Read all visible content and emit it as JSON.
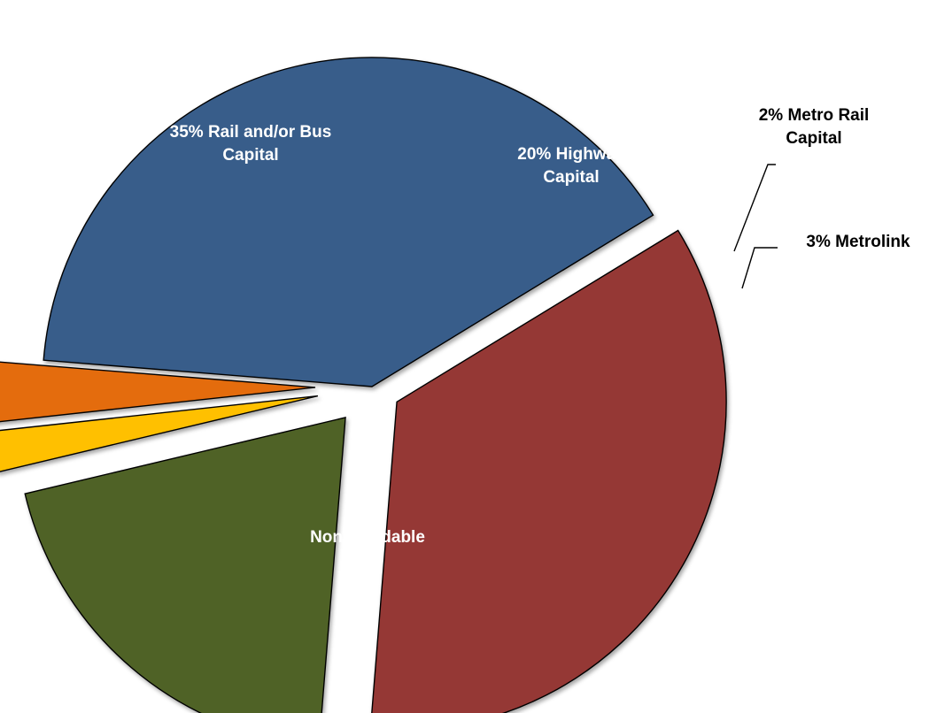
{
  "chart_data": {
    "type": "pie",
    "title": "",
    "exploded": true,
    "slices": [
      {
        "label": "Non-Bondable",
        "lines": [
          "Non-Bondable"
        ],
        "value": 40,
        "color": "#385D8A",
        "label_position": "inside"
      },
      {
        "label": "35% Rail and/or Bus Capital",
        "lines": [
          "35% Rail and/or Bus",
          "Capital"
        ],
        "value": 35,
        "color": "#953735",
        "label_position": "inside"
      },
      {
        "label": "20% Highway Capital",
        "lines": [
          "20% Highway",
          "Capital"
        ],
        "value": 20,
        "color": "#4F6228",
        "label_position": "inside"
      },
      {
        "label": "2% Metro Rail Capital",
        "lines": [
          "2% Metro Rail",
          "Capital"
        ],
        "value": 2,
        "color": "#FFC000",
        "label_position": "outside"
      },
      {
        "label": "3% Metrolink",
        "lines": [
          "3% Metrolink"
        ],
        "value": 3,
        "color": "#E46C0A",
        "label_position": "outside"
      }
    ]
  }
}
